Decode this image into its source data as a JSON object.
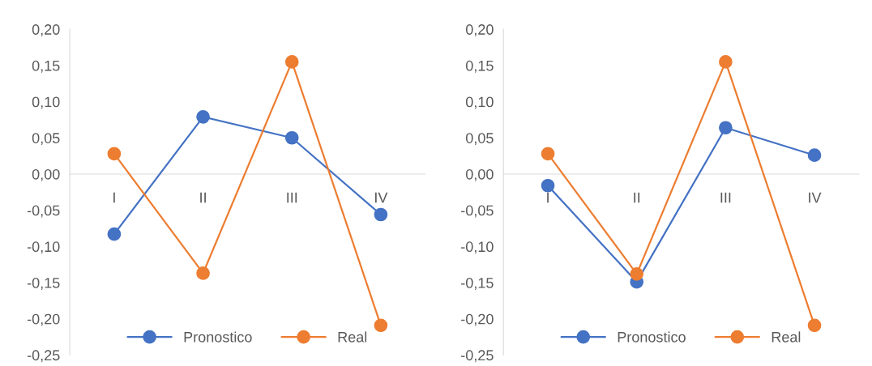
{
  "chart_data": [
    {
      "type": "line",
      "categories": [
        "I",
        "II",
        "III",
        "IV"
      ],
      "series": [
        {
          "name": "Pronostico",
          "color": "#4472c4",
          "values": [
            -0.083,
            0.079,
            0.05,
            -0.056
          ]
        },
        {
          "name": "Real",
          "color": "#ed7d31",
          "values": [
            0.028,
            -0.137,
            0.155,
            -0.209
          ]
        }
      ],
      "ylim": [
        -0.25,
        0.2
      ],
      "yticks": [
        {
          "value": -0.25,
          "label": "-0,25"
        },
        {
          "value": -0.2,
          "label": "-0,20"
        },
        {
          "value": -0.15,
          "label": "-0,15"
        },
        {
          "value": -0.1,
          "label": "-0,10"
        },
        {
          "value": -0.05,
          "label": "-0,05"
        },
        {
          "value": 0,
          "label": "0,00"
        },
        {
          "value": 0.05,
          "label": "0,05"
        },
        {
          "value": 0.1,
          "label": "0,10"
        },
        {
          "value": 0.15,
          "label": "0,15"
        },
        {
          "value": 0.2,
          "label": "0,20"
        }
      ],
      "marker": "circle",
      "line_style": "solid",
      "grid": false,
      "legend": "bottom"
    },
    {
      "type": "line",
      "categories": [
        "I",
        "II",
        "III",
        "IV"
      ],
      "series": [
        {
          "name": "Pronostico",
          "color": "#4472c4",
          "values": [
            -0.016,
            -0.149,
            0.064,
            0.026
          ]
        },
        {
          "name": "Real",
          "color": "#ed7d31",
          "values": [
            0.028,
            -0.138,
            0.155,
            -0.209
          ]
        }
      ],
      "ylim": [
        -0.25,
        0.2
      ],
      "yticks": [
        {
          "value": -0.25,
          "label": "-0,25"
        },
        {
          "value": -0.2,
          "label": "-0,20"
        },
        {
          "value": -0.15,
          "label": "-0,15"
        },
        {
          "value": -0.1,
          "label": "-0,10"
        },
        {
          "value": -0.05,
          "label": "-0,05"
        },
        {
          "value": 0,
          "label": "0,00"
        },
        {
          "value": 0.05,
          "label": "0,05"
        },
        {
          "value": 0.1,
          "label": "0,10"
        },
        {
          "value": 0.15,
          "label": "0,15"
        },
        {
          "value": 0.2,
          "label": "0,20"
        }
      ],
      "marker": "circle",
      "line_style": "solid",
      "grid": false,
      "legend": "bottom"
    }
  ]
}
